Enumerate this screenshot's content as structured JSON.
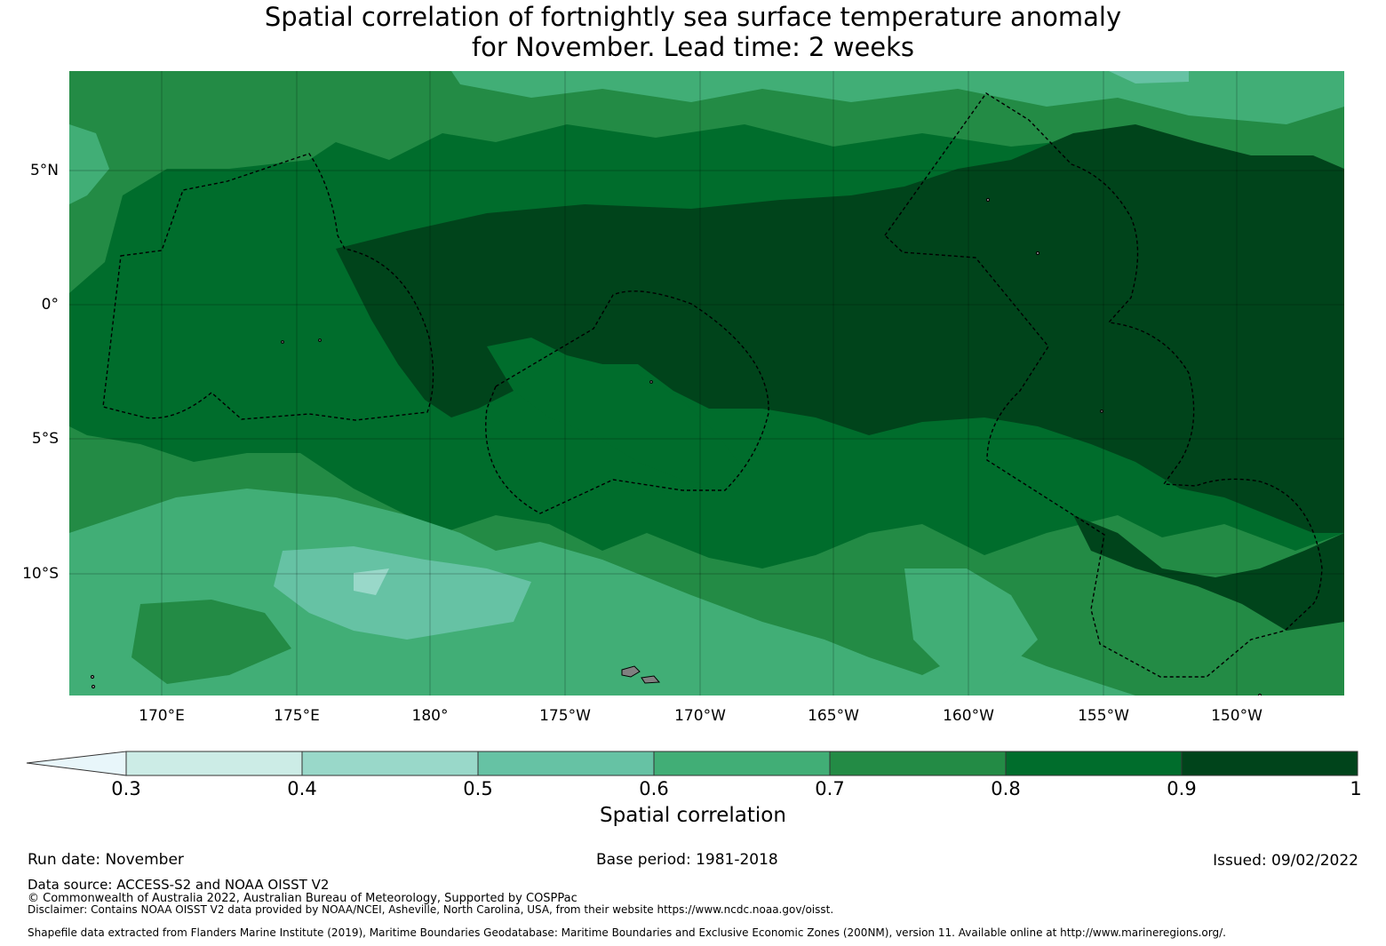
{
  "title": {
    "line1": "Spatial correlation of fortnightly sea surface temperature anomaly",
    "line2": "for November. Lead time: 2 weeks"
  },
  "map": {
    "lat_labels": [
      "5°N",
      "0°",
      "5°S",
      "10°S"
    ],
    "lon_labels": [
      "170°E",
      "175°E",
      "180°",
      "175°W",
      "170°W",
      "165°W",
      "160°W",
      "155°W",
      "150°W"
    ],
    "lon_range": "166.6°E–147.3°W",
    "lat_range": "14.6°S–8.6°N"
  },
  "colorbar": {
    "label": "Spatial correlation",
    "ticks": [
      "0.3",
      "0.4",
      "0.5",
      "0.6",
      "0.7",
      "0.8",
      "0.9",
      "1"
    ],
    "colors": [
      "#e8f6fa",
      "#ccece6",
      "#99d8c9",
      "#66c2a4",
      "#41ae76",
      "#238b45",
      "#006d2c",
      "#00441b"
    ],
    "land_color": "#808080"
  },
  "footer": {
    "run_date": "Run date: November",
    "base_period": "Base period: 1981-2018",
    "issued": "Issued: 09/02/2022",
    "data_source": "Data source: ACCESS-S2 and NOAA OISST V2",
    "copyright": "© Commonwealth of Australia 2022, Australian Bureau of Meteorology, Supported by COSPPac",
    "disclaimer": "Disclaimer: Contains NOAA OISST V2 data provided by NOAA/NCEI, Asheville, North Carolina, USA, from their website https://www.ncdc.noaa.gov/oisst.",
    "shapefile": "Shapefile data extracted from Flanders Marine Institute (2019), Maritime Boundaries Geodatabase: Maritime Boundaries and Exclusive Economic Zones (200NM), version 11. Available online at http://www.marineregions.org/."
  }
}
